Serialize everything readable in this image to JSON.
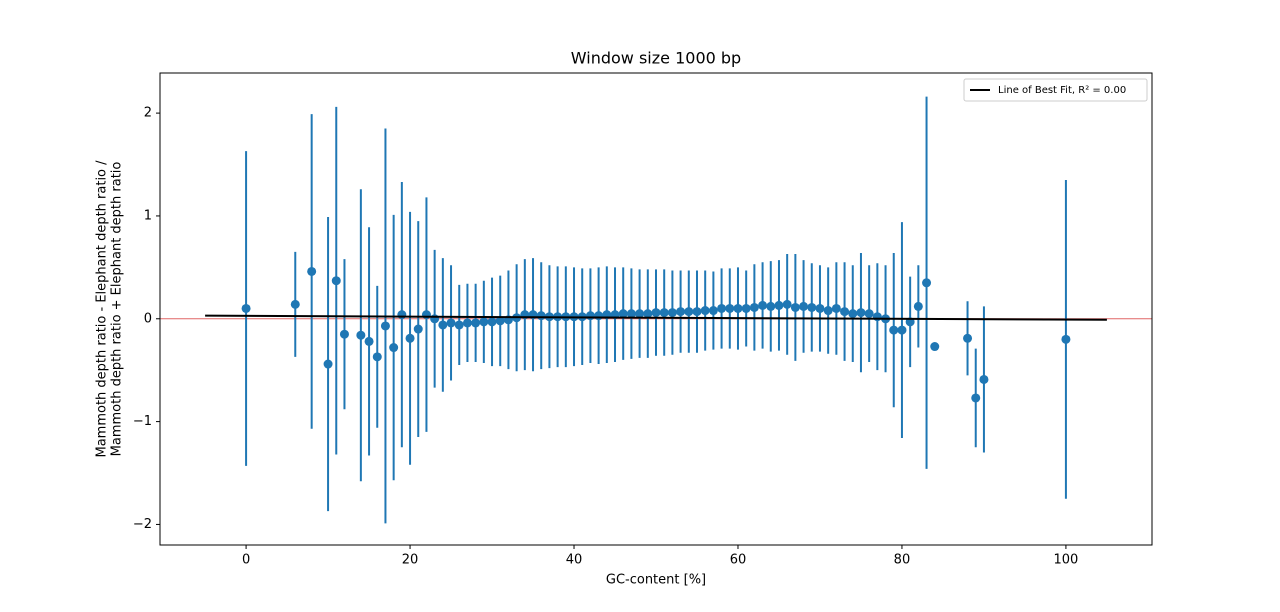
{
  "chart_data": {
    "type": "scatter",
    "title": "Window size 1000 bp",
    "xlabel": "GC-content [%]",
    "ylabel": [
      "Mammoth depth ratio - Elephant depth ratio /",
      "Mammoth depth ratio + Elephant depth ratio"
    ],
    "xlim": [
      -10.5,
      110.5
    ],
    "ylim": [
      -2.2,
      2.39
    ],
    "xticks": [
      0,
      20,
      40,
      60,
      80,
      100
    ],
    "yticks": [
      {
        "value": -2,
        "label": "−2"
      },
      {
        "value": -1,
        "label": "−1"
      },
      0,
      1,
      2
    ],
    "hline": {
      "value": 0,
      "color": "#e06666"
    },
    "legend": "upper right",
    "series": [
      {
        "color": "#1f77b4",
        "x": [
          0,
          6,
          8,
          10,
          11,
          12,
          14,
          15,
          16,
          17,
          18,
          19,
          20,
          21,
          22,
          23,
          24,
          25,
          26,
          27,
          28,
          29,
          30,
          31,
          32,
          33,
          34,
          35,
          36,
          37,
          38,
          39,
          40,
          41,
          42,
          43,
          44,
          45,
          46,
          47,
          48,
          49,
          50,
          51,
          52,
          53,
          54,
          55,
          56,
          57,
          58,
          59,
          60,
          61,
          62,
          63,
          64,
          65,
          66,
          67,
          68,
          69,
          70,
          71,
          72,
          73,
          74,
          75,
          76,
          77,
          78,
          79,
          80,
          81,
          82,
          83,
          84,
          88,
          89,
          90,
          100
        ],
        "values": [
          0.1,
          0.14,
          0.46,
          -0.44,
          0.37,
          -0.15,
          -0.16,
          -0.22,
          -0.37,
          -0.07,
          -0.28,
          0.04,
          -0.19,
          -0.1,
          0.04,
          0.0,
          -0.06,
          -0.04,
          -0.06,
          -0.04,
          -0.04,
          -0.03,
          -0.03,
          -0.02,
          -0.01,
          0.01,
          0.04,
          0.04,
          0.03,
          0.02,
          0.02,
          0.02,
          0.02,
          0.02,
          0.03,
          0.03,
          0.04,
          0.04,
          0.05,
          0.05,
          0.05,
          0.05,
          0.06,
          0.06,
          0.06,
          0.07,
          0.07,
          0.07,
          0.08,
          0.08,
          0.1,
          0.1,
          0.1,
          0.1,
          0.11,
          0.13,
          0.12,
          0.13,
          0.14,
          0.11,
          0.12,
          0.11,
          0.1,
          0.08,
          0.1,
          0.07,
          0.05,
          0.06,
          0.05,
          0.02,
          0.0,
          -0.11,
          -0.11,
          -0.03,
          0.12,
          0.35,
          -0.27,
          -0.19,
          -0.77,
          -0.59,
          -0.2
        ],
        "errors": [
          1.53,
          0.51,
          1.53,
          1.43,
          1.69,
          0.73,
          1.42,
          1.11,
          0.69,
          1.92,
          1.29,
          1.29,
          1.23,
          1.05,
          1.14,
          0.67,
          0.65,
          0.56,
          0.39,
          0.38,
          0.38,
          0.4,
          0.43,
          0.44,
          0.48,
          0.52,
          0.54,
          0.55,
          0.52,
          0.5,
          0.49,
          0.49,
          0.48,
          0.47,
          0.46,
          0.47,
          0.47,
          0.46,
          0.45,
          0.44,
          0.43,
          0.43,
          0.42,
          0.42,
          0.41,
          0.4,
          0.4,
          0.4,
          0.39,
          0.38,
          0.39,
          0.39,
          0.4,
          0.37,
          0.42,
          0.42,
          0.44,
          0.44,
          0.49,
          0.52,
          0.45,
          0.43,
          0.42,
          0.42,
          0.45,
          0.48,
          0.47,
          0.58,
          0.47,
          0.52,
          0.52,
          0.75,
          1.05,
          0.44,
          0.4,
          1.81,
          0.02,
          0.36,
          0.48,
          0.71,
          1.55
        ]
      },
      {
        "name": "Line of Best Fit, R² = 0.00",
        "color": "#000000",
        "x": [
          -5,
          105
        ],
        "values": [
          0.03,
          -0.01
        ]
      }
    ]
  }
}
